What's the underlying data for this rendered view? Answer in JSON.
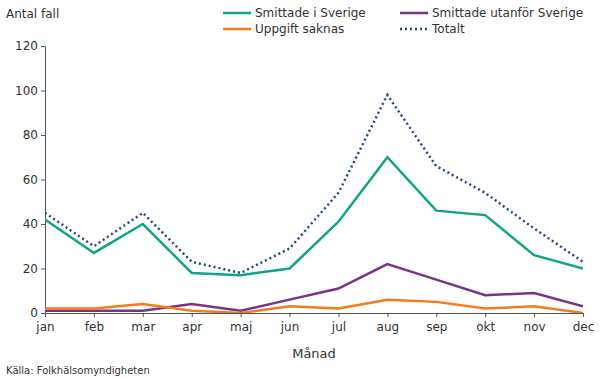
{
  "chart_data": {
    "type": "line",
    "y_label": "Antal fall",
    "x_label": "Månad",
    "source": "Källa: Folkhälsomyndigheten",
    "categories": [
      "jan",
      "feb",
      "mar",
      "apr",
      "maj",
      "jun",
      "jul",
      "aug",
      "sep",
      "okt",
      "nov",
      "dec"
    ],
    "series": [
      {
        "name": "Smittade i Sverige",
        "color": "#13a385",
        "line_style": "solid",
        "values": [
          42,
          27,
          40,
          18,
          17,
          20,
          41,
          70,
          46,
          44,
          26,
          20
        ]
      },
      {
        "name": "Smittade utanför Sverige",
        "color": "#7a3289",
        "line_style": "solid",
        "values": [
          1,
          1,
          1,
          4,
          1,
          6,
          11,
          22,
          15,
          8,
          9,
          3
        ]
      },
      {
        "name": "Uppgift saknas",
        "color": "#f07d1a",
        "line_style": "solid",
        "values": [
          2,
          2,
          4,
          1,
          0,
          3,
          2,
          6,
          5,
          2,
          3,
          0
        ]
      },
      {
        "name": "Totalt",
        "color": "#26477a",
        "line_style": "dotted",
        "values": [
          45,
          30,
          45,
          23,
          18,
          29,
          54,
          98,
          66,
          54,
          38,
          23
        ]
      }
    ],
    "ylim": [
      0,
      120
    ],
    "yticks": [
      0,
      20,
      40,
      60,
      80,
      100,
      120
    ],
    "grid": false,
    "legend": "top"
  }
}
